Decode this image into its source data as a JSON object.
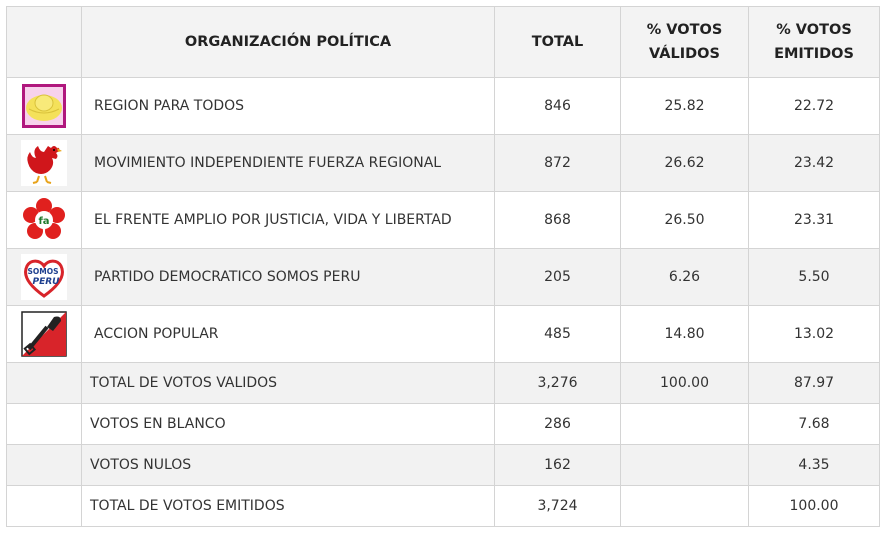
{
  "table": {
    "headers": {
      "logo": "",
      "organization": "ORGANIZACIÓN POLÍTICA",
      "total": "TOTAL",
      "valid_pct": "% VOTOS VÁLIDOS",
      "emitted_pct": "% VOTOS EMITIDOS"
    },
    "parties": [
      {
        "logo": "sun-hat-icon",
        "name": "REGION PARA TODOS",
        "total": "846",
        "valid_pct": "25.82",
        "emitted_pct": "22.72"
      },
      {
        "logo": "rooster-icon",
        "name": "MOVIMIENTO INDEPENDIENTE FUERZA REGIONAL",
        "total": "872",
        "valid_pct": "26.62",
        "emitted_pct": "23.42"
      },
      {
        "logo": "red-flower-icon",
        "name": "EL FRENTE AMPLIO POR JUSTICIA, VIDA Y LIBERTAD",
        "total": "868",
        "valid_pct": "26.50",
        "emitted_pct": "23.31"
      },
      {
        "logo": "heart-somos-peru-icon",
        "logo_text_top": "SOMOS",
        "logo_text_bottom": "PERU",
        "name": "PARTIDO DEMOCRATICO SOMOS PERU",
        "total": "205",
        "valid_pct": "6.26",
        "emitted_pct": "5.50"
      },
      {
        "logo": "shovel-icon",
        "name": "ACCION POPULAR",
        "total": "485",
        "valid_pct": "14.80",
        "emitted_pct": "13.02"
      }
    ],
    "summary": [
      {
        "label": "TOTAL DE VOTOS VALIDOS",
        "total": "3,276",
        "valid_pct": "100.00",
        "emitted_pct": "87.97"
      },
      {
        "label": "VOTOS EN BLANCO",
        "total": "286",
        "valid_pct": "",
        "emitted_pct": "7.68"
      },
      {
        "label": "VOTOS NULOS",
        "total": "162",
        "valid_pct": "",
        "emitted_pct": "4.35"
      },
      {
        "label": "TOTAL DE VOTOS EMITIDOS",
        "total": "3,724",
        "valid_pct": "",
        "emitted_pct": "100.00"
      }
    ]
  },
  "colors": {
    "header_bg": "#f3f3f3",
    "row_shade": "#f2f2f2",
    "border": "#d4d4d4",
    "text": "#333333"
  }
}
